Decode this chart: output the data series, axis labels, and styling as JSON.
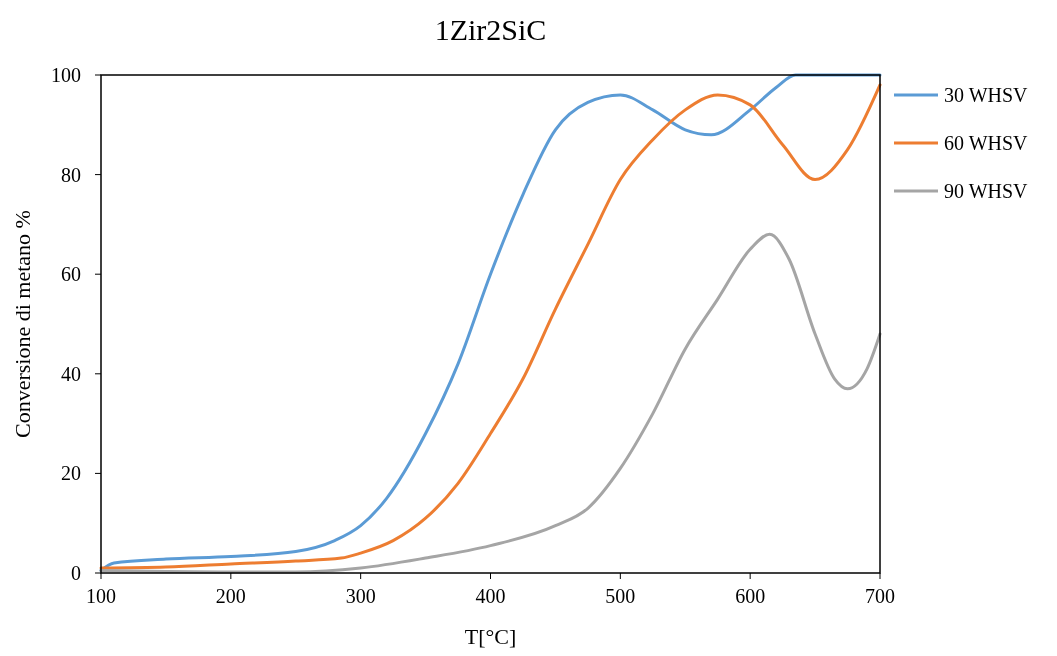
{
  "chart_data": {
    "type": "line",
    "title": "1Zir2SiC",
    "xlabel": "T[°C]",
    "ylabel": "Conversione di metano %",
    "xlim": [
      100,
      700
    ],
    "xticks": [
      100,
      200,
      300,
      400,
      500,
      600,
      700
    ],
    "ylim": [
      0,
      100
    ],
    "yticks": [
      0,
      20,
      40,
      60,
      80,
      100
    ],
    "grid": false,
    "legend": "right",
    "marker": "none",
    "line_style": "solid",
    "series": [
      {
        "name": "30 WHSV",
        "color": "#5b9bd5",
        "x": [
          100,
          110,
          150,
          200,
          250,
          280,
          300,
          320,
          350,
          375,
          400,
          425,
          450,
          475,
          500,
          525,
          550,
          570,
          600,
          620,
          635,
          700
        ],
        "values": [
          0.5,
          2,
          2.8,
          3.3,
          4.3,
          6.5,
          9.5,
          15,
          28,
          42,
          60,
          76,
          89,
          94.5,
          96,
          93,
          89,
          88,
          93,
          97.5,
          100,
          100
        ]
      },
      {
        "name": "60 WHSV",
        "color": "#ed7d31",
        "x": [
          100,
          150,
          200,
          250,
          285,
          300,
          325,
          350,
          375,
          400,
          425,
          450,
          475,
          500,
          525,
          550,
          575,
          600,
          625,
          650,
          675,
          700
        ],
        "values": [
          1,
          1.2,
          1.8,
          2.4,
          3,
          4,
          6.5,
          11,
          18,
          28,
          39,
          53,
          66,
          79,
          87,
          93,
          96,
          94,
          86,
          79,
          85,
          98
        ]
      },
      {
        "name": "90 WHSV",
        "color": "#a5a5a5",
        "x": [
          100,
          150,
          200,
          250,
          300,
          350,
          400,
          450,
          475,
          500,
          525,
          550,
          575,
          600,
          615,
          630,
          650,
          665,
          675,
          690,
          700
        ],
        "values": [
          0.5,
          0.3,
          0.2,
          0.2,
          1,
          3,
          5.5,
          9.5,
          13,
          21,
          32,
          45,
          55,
          65,
          68,
          63,
          48,
          39,
          37,
          41,
          48
        ]
      }
    ]
  }
}
